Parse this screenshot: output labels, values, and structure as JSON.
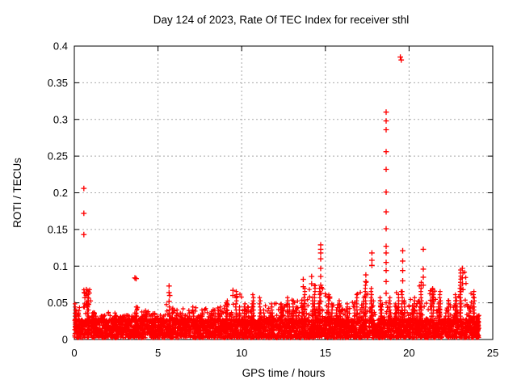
{
  "style": {
    "background": "#ffffff",
    "marker_color": "#ff0000",
    "axis_color": "#000000",
    "grid_color": "#a8a8a8",
    "text_color": "#000000"
  },
  "chart_data": {
    "type": "scatter",
    "title": "Day 124 of 2023, Rate Of TEC Index for receiver sthl",
    "xlabel": "GPS time / hours",
    "ylabel": "ROTI / TECUs",
    "xlim": [
      0,
      25
    ],
    "ylim": [
      0,
      0.4
    ],
    "xticks": [
      0,
      5,
      10,
      15,
      20,
      25
    ],
    "xtick_labels": [
      "0",
      "5",
      "10",
      "15",
      "20",
      "25"
    ],
    "yticks": [
      0,
      0.05,
      0.1,
      0.15,
      0.2,
      0.25,
      0.3,
      0.35,
      0.4
    ],
    "ytick_labels": [
      "0",
      "0.05",
      "0.1",
      "0.15",
      "0.2",
      "0.25",
      "0.3",
      "0.35",
      "0.4"
    ],
    "grid": true,
    "grid_style": "dashed",
    "legend": "none",
    "marker": "plus",
    "marker_color": "#ff0000",
    "series_name": "ROTI",
    "data_hours_range": [
      0,
      24.18
    ],
    "dense_band": {
      "note": "continuous dense band of red plus markers hugging 0-0.03 TECU across all 24 hours, with grassy spikes; grass_top_by_bin gives approx max of the dense band per 0.5 h bin",
      "solid_top": 0.026,
      "bin_width_hours": 0.5,
      "grass_top_by_bin": [
        0.05,
        0.068,
        0.038,
        0.036,
        0.037,
        0.035,
        0.033,
        0.046,
        0.04,
        0.036,
        0.034,
        0.048,
        0.042,
        0.04,
        0.047,
        0.044,
        0.042,
        0.046,
        0.055,
        0.067,
        0.052,
        0.063,
        0.058,
        0.052,
        0.05,
        0.058,
        0.057,
        0.07,
        0.075,
        0.072,
        0.062,
        0.054,
        0.052,
        0.065,
        0.08,
        0.07,
        0.06,
        0.058,
        0.065,
        0.068,
        0.058,
        0.08,
        0.072,
        0.068,
        0.055,
        0.062,
        0.095,
        0.068
      ]
    },
    "outliers": [
      [
        0.57,
        0.206
      ],
      [
        0.57,
        0.172
      ],
      [
        0.57,
        0.143
      ],
      [
        0.6,
        0.064
      ],
      [
        0.63,
        0.057
      ],
      [
        0.72,
        0.068
      ],
      [
        0.72,
        0.06
      ],
      [
        3.62,
        0.084
      ],
      [
        3.69,
        0.083
      ],
      [
        5.66,
        0.073
      ],
      [
        5.66,
        0.064
      ],
      [
        5.7,
        0.06
      ],
      [
        5.66,
        0.052
      ],
      [
        9.48,
        0.067
      ],
      [
        9.48,
        0.06
      ],
      [
        13.68,
        0.082
      ],
      [
        13.68,
        0.072
      ],
      [
        14.18,
        0.086
      ],
      [
        14.18,
        0.076
      ],
      [
        14.72,
        0.129
      ],
      [
        14.72,
        0.123
      ],
      [
        14.72,
        0.118
      ],
      [
        14.72,
        0.11
      ],
      [
        14.72,
        0.097
      ],
      [
        14.72,
        0.086
      ],
      [
        14.72,
        0.074
      ],
      [
        14.72,
        0.063
      ],
      [
        14.72,
        0.052
      ],
      [
        15.25,
        0.058
      ],
      [
        17.42,
        0.088
      ],
      [
        17.42,
        0.079
      ],
      [
        17.78,
        0.118
      ],
      [
        17.78,
        0.108
      ],
      [
        17.78,
        0.101
      ],
      [
        18.63,
        0.31
      ],
      [
        18.63,
        0.298
      ],
      [
        18.63,
        0.286
      ],
      [
        18.63,
        0.256
      ],
      [
        18.63,
        0.232
      ],
      [
        18.63,
        0.201
      ],
      [
        18.63,
        0.174
      ],
      [
        18.63,
        0.151
      ],
      [
        18.63,
        0.127
      ],
      [
        18.63,
        0.118
      ],
      [
        18.63,
        0.105
      ],
      [
        18.63,
        0.094
      ],
      [
        18.63,
        0.079
      ],
      [
        18.63,
        0.063
      ],
      [
        18.63,
        0.05
      ],
      [
        19.48,
        0.385
      ],
      [
        19.53,
        0.381
      ],
      [
        19.62,
        0.121
      ],
      [
        19.62,
        0.107
      ],
      [
        19.62,
        0.094
      ],
      [
        19.62,
        0.08
      ],
      [
        20.85,
        0.123
      ],
      [
        20.85,
        0.096
      ],
      [
        20.85,
        0.085
      ],
      [
        20.85,
        0.074
      ],
      [
        21.4,
        0.068
      ],
      [
        21.4,
        0.058
      ],
      [
        23.18,
        0.097
      ],
      [
        23.22,
        0.091
      ],
      [
        23.18,
        0.084
      ],
      [
        23.2,
        0.076
      ],
      [
        23.22,
        0.068
      ]
    ]
  }
}
